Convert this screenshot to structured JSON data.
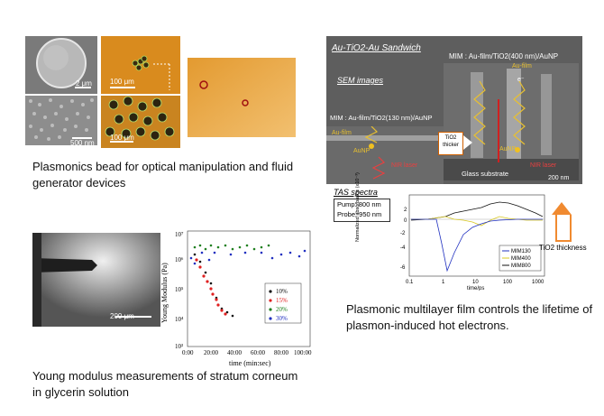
{
  "panel1": {
    "scale_2um": "2 μm",
    "scale_500nm": "500 nm",
    "scale_100um_top": "100 μm",
    "scale_100um_bottom": "100 μm",
    "caption_line1": "Plasmonics bead for optical manipulation and fluid",
    "caption_line2": "generator devices"
  },
  "panel2": {
    "title": "Au-TiO2-Au Sandwich",
    "mim_top": "MIM : Au-film/TiO2(400 nm)/AuNP",
    "sem_label": "SEM images",
    "mim_left": "MIM : Au-film/TiO2(130 nm)/AuNP",
    "au_film_left": "Au-film",
    "au_film_right": "Au-film",
    "tio2_thicker_1": "TiO2",
    "tio2_thicker_2": "thicker",
    "aunp_left": "AuNP",
    "aunp_right": "AuNP",
    "nir_left": "NIR laser",
    "nir_right": "NIR laser",
    "glass": "Glass substrate",
    "scale_200nm": "200 nm",
    "e_minus": "e⁻",
    "tas_title": "TAS spectra",
    "pump": "Pump: 800 nm",
    "probe": "Probe: 950 nm",
    "ylabel": "Normalized absorbance (x10⁻³)",
    "xlabel": "time/ps",
    "yticks": [
      "2",
      "0",
      "-2",
      "-4",
      "-6"
    ],
    "xticks": [
      "0.1",
      "1",
      "10",
      "100",
      "1000"
    ],
    "legend": [
      "MIM130",
      "MIM400",
      "MIM800"
    ],
    "tio2_thickness": "TiO2 thickness",
    "caption_line1": "Plasmonic multilayer film controls the lifetime of",
    "caption_line2": "plasmon-induced hot electrons."
  },
  "panel3": {
    "scale_200um": "200 μm",
    "ylabel": "Young Modulus (Pa)",
    "xlabel": "time (min:sec)",
    "yticks": [
      "10⁷",
      "10⁶",
      "10⁵",
      "10⁴",
      "10³"
    ],
    "xticks": [
      "0:00",
      "20:00",
      "40:00",
      "60:00",
      "80:00",
      "100:00"
    ],
    "legend": [
      "10%",
      "15%",
      "20%",
      "30%"
    ],
    "caption_line1": "Young modulus measurements of stratum corneum",
    "caption_line2": "in glycerin solution"
  },
  "colors": {
    "orange": "#d98b1e",
    "sem_gray": "#6a6a6a",
    "red": "#e02020",
    "blue": "#2030c0",
    "green": "#208020",
    "yellow": "#d8c820"
  }
}
